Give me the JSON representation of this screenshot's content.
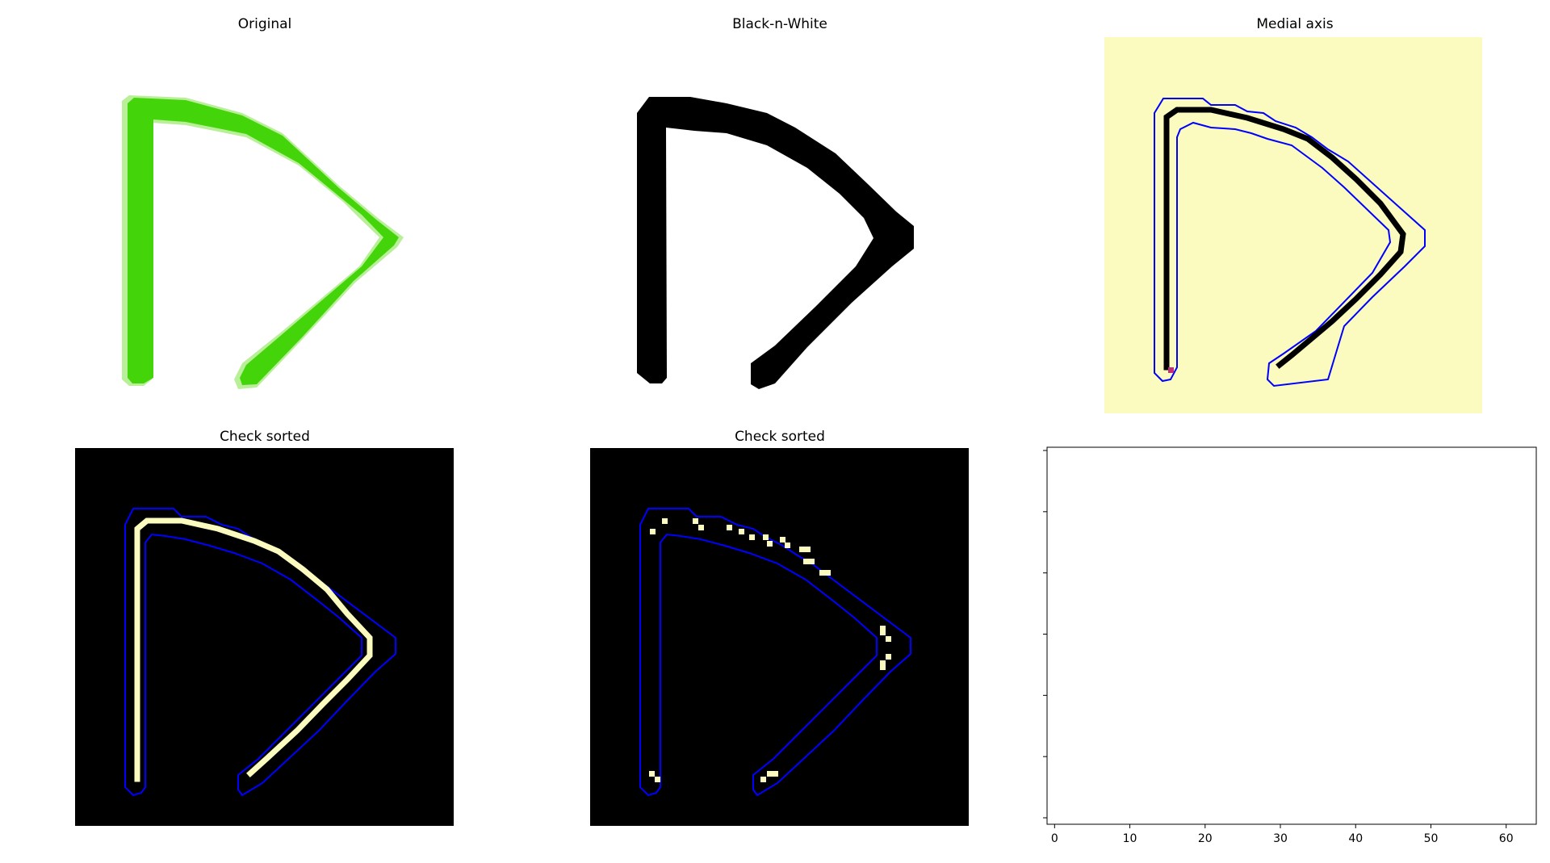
{
  "chart_data": [
    {
      "type": "image",
      "title": "Original",
      "colors": {
        "stroke": "#44d40a",
        "edge": "#b8ef98"
      }
    },
    {
      "type": "image",
      "title": "Black-n-White",
      "colors": {
        "ink": "#000000"
      }
    },
    {
      "type": "image",
      "title": "Medial axis",
      "colors": {
        "background": "#fbfbc0",
        "skeleton": "#000000",
        "contour": "#0000ff",
        "endpoint": "#c0307a"
      }
    },
    {
      "type": "image",
      "title": "Check sorted",
      "colors": {
        "background": "#000000",
        "pixels": "#fbfbc0",
        "contour": "#0000ff"
      }
    },
    {
      "type": "image",
      "title": "Check sorted",
      "colors": {
        "background": "#000000",
        "pixels": "#fbfbc0",
        "contour": "#0000ff"
      }
    },
    {
      "type": "line",
      "title": "",
      "series": [],
      "xlim": [
        -1,
        64
      ],
      "x_ticks": [
        0,
        10,
        20,
        30,
        40,
        50,
        60
      ],
      "y_ticks_labeled": false
    }
  ]
}
